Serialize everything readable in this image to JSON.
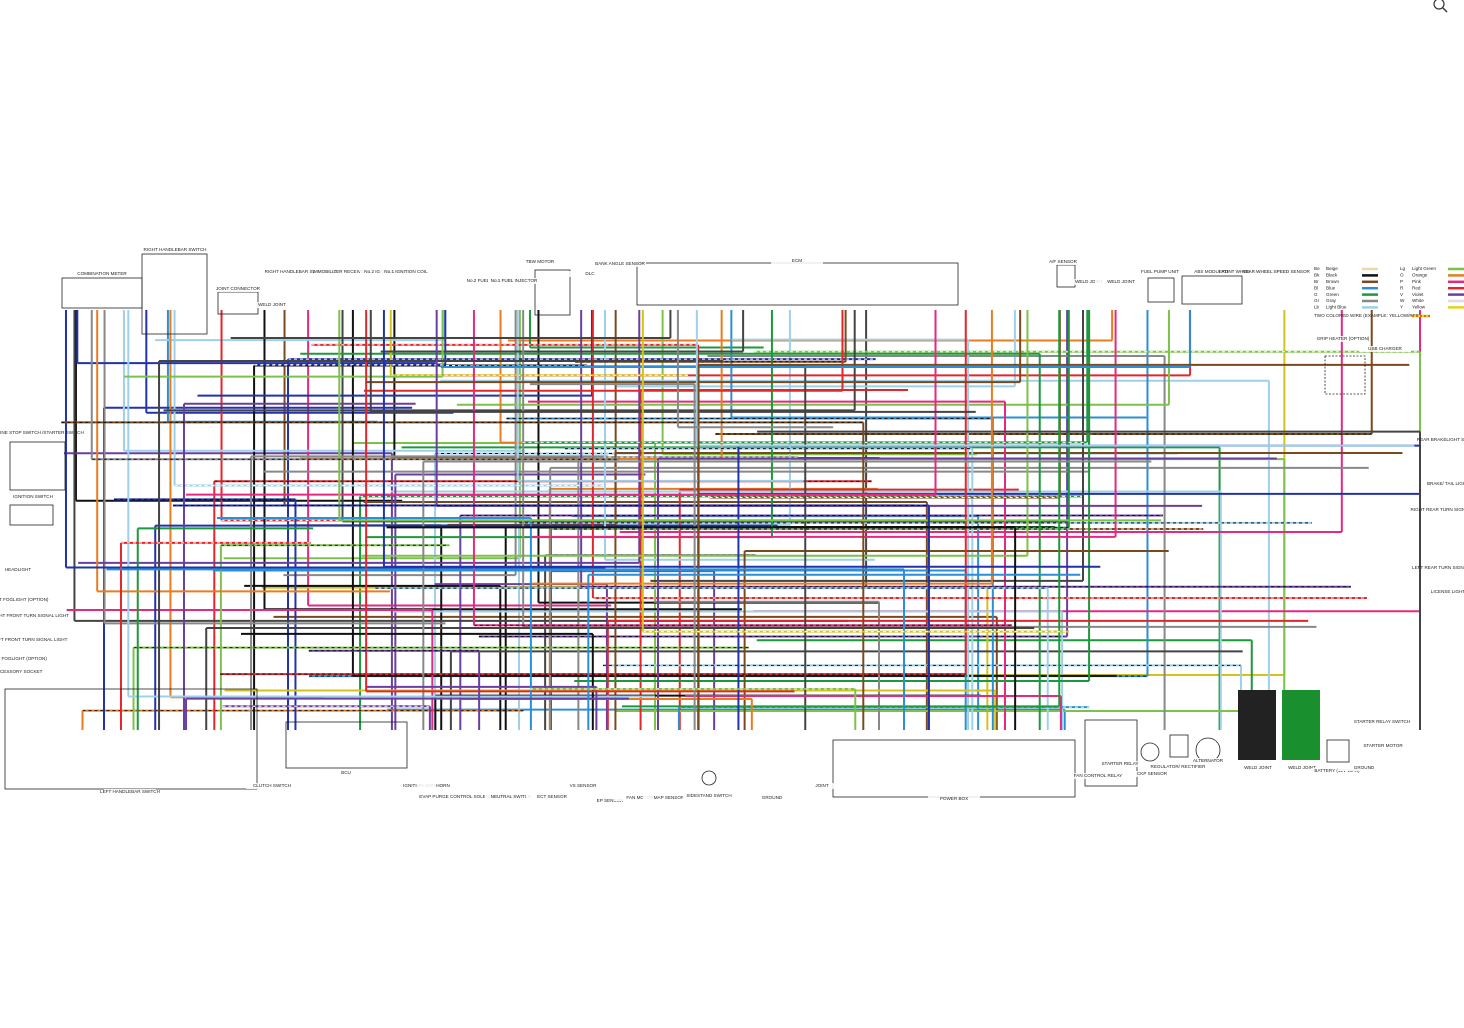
{
  "legend": {
    "entries": [
      {
        "code": "Be",
        "name": "Beige"
      },
      {
        "code": "Bk",
        "name": "Black"
      },
      {
        "code": "Br",
        "name": "Brown"
      },
      {
        "code": "Bl",
        "name": "Blue"
      },
      {
        "code": "G",
        "name": "Green"
      },
      {
        "code": "Gr",
        "name": "Gray"
      },
      {
        "code": "Lb",
        "name": "Light Blue"
      },
      {
        "code": "Lg",
        "name": "Light Green"
      },
      {
        "code": "O",
        "name": "Orange"
      },
      {
        "code": "P",
        "name": "Pink"
      },
      {
        "code": "R",
        "name": "Red"
      },
      {
        "code": "V",
        "name": "Violet"
      },
      {
        "code": "W",
        "name": "White"
      },
      {
        "code": "Y",
        "name": "Yellow"
      }
    ],
    "note": "TWO COLORED WIRE (EXAMPLE: YELLOW/RED)"
  },
  "components": [
    {
      "label": "RIGHT HANDLEBAR SWITCH"
    },
    {
      "label": "COMBINATION METER"
    },
    {
      "label": "JOINT CONNECTOR"
    },
    {
      "label": "WELD JOINT"
    },
    {
      "label": "RIGHT HANDLEBAR SWITCH (UPS)"
    },
    {
      "label": "IMMOBILIZER RECEIVER"
    },
    {
      "label": "No.2 IGNITION COIL"
    },
    {
      "label": "No.1 IGNITION COIL"
    },
    {
      "label": "No.2 FUEL INJECTOR"
    },
    {
      "label": "No.1 FUEL INJECTOR"
    },
    {
      "label": "TBW MOTOR"
    },
    {
      "label": "DLC"
    },
    {
      "label": "BANK ANGLE SENSOR"
    },
    {
      "label": "ECM"
    },
    {
      "label": "A/F SENSOR"
    },
    {
      "label": "WELD JOINT"
    },
    {
      "label": "WELD JOINT"
    },
    {
      "label": "FUEL PUMP UNIT"
    },
    {
      "label": "ABS MODULATOR"
    },
    {
      "label": "FRONT WHEEL SPEED SENSOR"
    },
    {
      "label": "REAR WHEEL SPEED SENSOR"
    },
    {
      "label": "GRIP HEATER (OPTION)"
    },
    {
      "label": "USB CHARGER"
    },
    {
      "label": "ENGINE STOP SWITCH /STARTER SWITCH"
    },
    {
      "label": "IGNITION SWITCH"
    },
    {
      "label": "HEADLIGHT"
    },
    {
      "label": "RIGHT FOGLIGHT (OPTION)"
    },
    {
      "label": "RIGHT FRONT TURN SIGNAL LIGHT"
    },
    {
      "label": "LEFT FRONT TURN SIGNAL LIGHT"
    },
    {
      "label": "LEFT FOGLIGHT (OPTION)"
    },
    {
      "label": "ACCESSORY SOCKET"
    },
    {
      "label": "LEFT HANDLEBAR SWITCH"
    },
    {
      "label": "REAR BRAKELIGHT SWITCH"
    },
    {
      "label": "BRAKE/ TAIL LIGHT"
    },
    {
      "label": "RIGHT REAR TURN SIGNAL LIGHT"
    },
    {
      "label": "LEFT REAR TURN SIGNAL LIGHT"
    },
    {
      "label": "LICENSE LIGHT"
    },
    {
      "label": "CLUTCH SWITCH"
    },
    {
      "label": "BCU"
    },
    {
      "label": "IGNITION SWITCH"
    },
    {
      "label": "HORN"
    },
    {
      "label": "EVAP PURGE CONTROL SOLENOID VALVE"
    },
    {
      "label": "NEUTRAL SWITCH"
    },
    {
      "label": "ECT SENSOR"
    },
    {
      "label": "VS SENSOR"
    },
    {
      "label": "EP SENSOR"
    },
    {
      "label": "FAN MOTOR"
    },
    {
      "label": "MAP SENSOR"
    },
    {
      "label": "SIDESTAND SWITCH"
    },
    {
      "label": "GROUND"
    },
    {
      "label": "JOINT"
    },
    {
      "label": "POWER BOX"
    },
    {
      "label": "FAN CONTROL RELAY"
    },
    {
      "label": "STARTER RELAY"
    },
    {
      "label": "CKP SENSOR"
    },
    {
      "label": "REGULATOR/ RECTIFIER"
    },
    {
      "label": "ALTERNATOR"
    },
    {
      "label": "WELD JOINT"
    },
    {
      "label": "WELD JOINT"
    },
    {
      "label": "BATTERY (12V 10Ah)"
    },
    {
      "label": "GROUND"
    },
    {
      "label": "STARTER RELAY SWITCH"
    },
    {
      "label": "STARTER MOTOR"
    }
  ]
}
